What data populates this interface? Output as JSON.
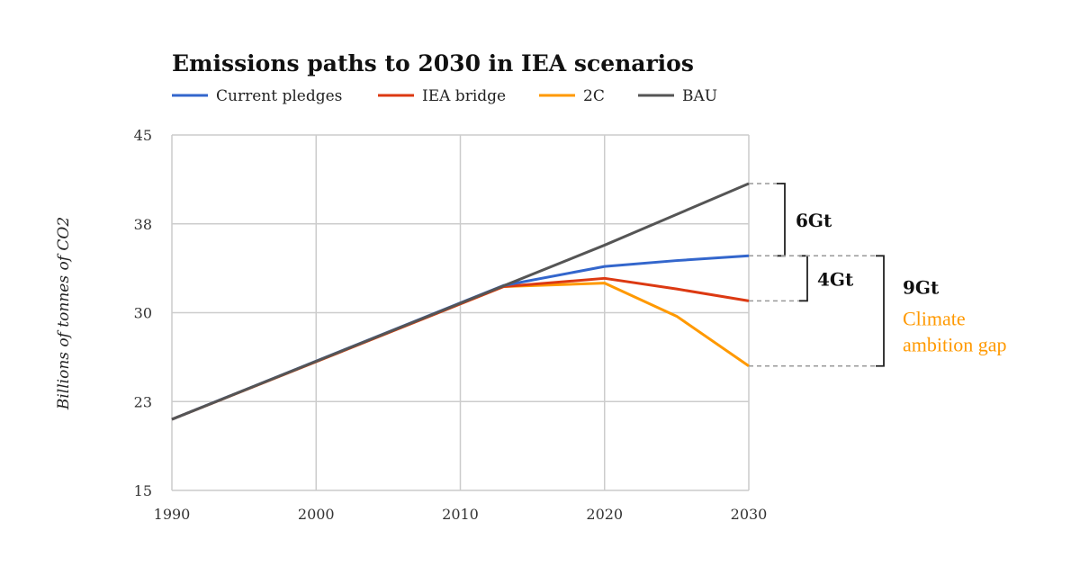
{
  "chart_data": {
    "type": "line",
    "title": "Emissions paths to 2030 in IEA scenarios",
    "ylabel": "Billions of tonnes of CO2",
    "xlabel": "",
    "xlim": [
      1990,
      2030
    ],
    "ylim": [
      15,
      45
    ],
    "x_ticks": [
      1990,
      2000,
      2010,
      2020,
      2030
    ],
    "y_ticks": [
      15,
      22.5,
      30,
      37.5,
      45
    ],
    "y_tick_labels": [
      "15",
      "23",
      "30",
      "38",
      "45"
    ],
    "grid": true,
    "legend_position": "top",
    "series": [
      {
        "name": "2C",
        "color": "#ff9900",
        "x": [
          1990,
          2013,
          2020,
          2025,
          2030
        ],
        "y": [
          21.0,
          32.2,
          32.5,
          29.7,
          25.5
        ]
      },
      {
        "name": "IEA bridge",
        "color": "#dc3912",
        "x": [
          1990,
          2013,
          2020,
          2025,
          2030
        ],
        "y": [
          21.0,
          32.2,
          32.9,
          32.0,
          31.0
        ]
      },
      {
        "name": "Current pledges",
        "color": "#3366cc",
        "x": [
          1990,
          2013,
          2020,
          2025,
          2030
        ],
        "y": [
          21.0,
          32.3,
          33.9,
          34.4,
          34.8
        ]
      },
      {
        "name": "BAU",
        "color": "#555555",
        "x": [
          1990,
          2020,
          2030
        ],
        "y": [
          21.0,
          35.7,
          40.9
        ]
      }
    ],
    "legend_order": [
      "Current pledges",
      "IEA bridge",
      "2C",
      "BAU"
    ],
    "annotations": [
      {
        "text": "6Gt",
        "from": "BAU",
        "to": "Current pledges"
      },
      {
        "text": "4Gt",
        "from": "Current pledges",
        "to": "IEA bridge"
      },
      {
        "text": "9Gt",
        "from": "Current pledges",
        "to": "2C",
        "subtext": [
          "Climate",
          "ambition gap"
        ],
        "subtext_color": "#ff9900"
      }
    ]
  }
}
